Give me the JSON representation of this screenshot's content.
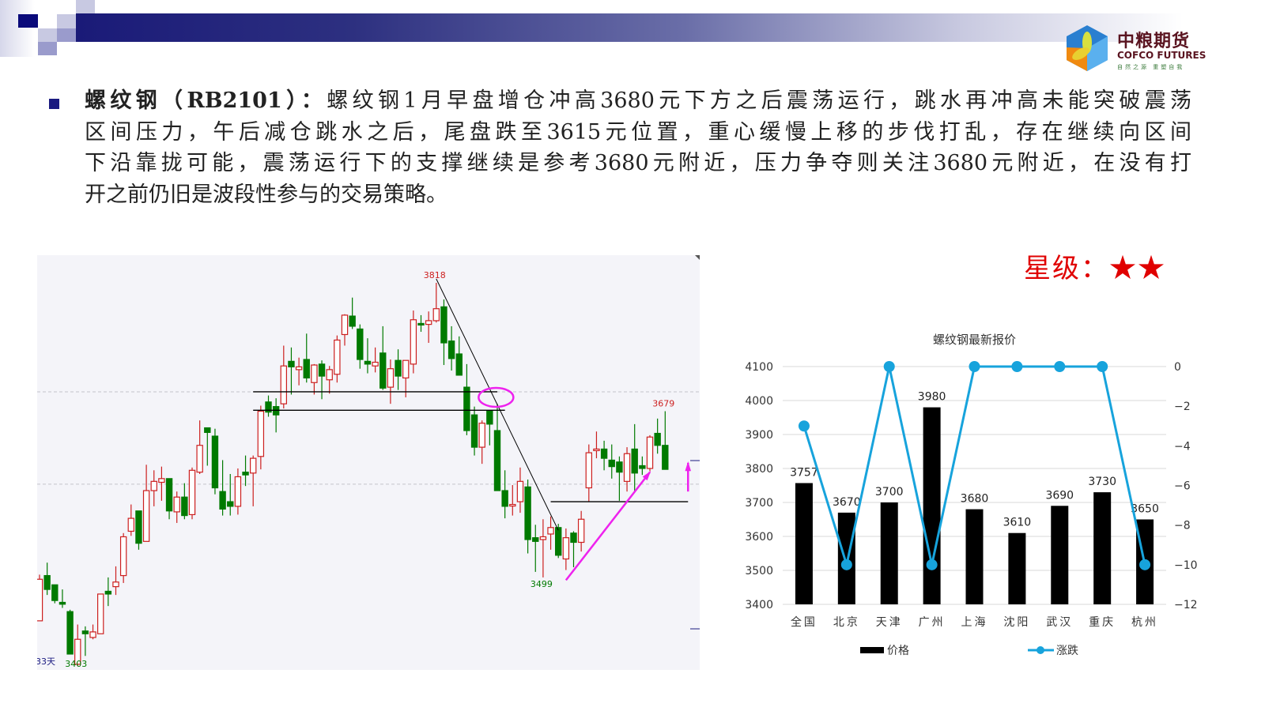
{
  "header": {
    "logo_cn": "中粮期货",
    "logo_en": "COFCO FUTURES",
    "logo_slogan": "自然之源 重塑自我"
  },
  "commentary": {
    "label": "螺纹钢（RB2101）：",
    "lines": [
      "螺纹钢1月早盘增仓冲高3680元下方之后震荡运行，跳水再冲高未能突破震荡",
      "区间压力，午后减仓跳水之后，尾盘跌至3615元位置，重心缓慢上移的步伐打乱，存在继续向区间",
      "下沿靠拢可能，震荡运行下的支撑继续是参考3680元附近，压力争夺则关注3680元附近，在没有打",
      "开之前仍旧是波段性参与的交易策略。"
    ]
  },
  "rating": {
    "label": "星级：",
    "stars": "★★",
    "value": 2,
    "max": 2
  },
  "colors": {
    "up": "#cc1f1f",
    "down": "#007a00",
    "annotation": "#ee22ee",
    "bar": "#000000",
    "line": "#17a3dc"
  },
  "chart_data": [
    {
      "type": "candlestick",
      "title": "",
      "corner_label": "33天",
      "ohlc_order": [
        "open",
        "high",
        "low",
        "close"
      ],
      "candles": [
        [
          3452,
          3502,
          3452,
          3497
        ],
        [
          3501,
          3515,
          3480,
          3486
        ],
        [
          3491,
          3491,
          3471,
          3474
        ],
        [
          3472,
          3486,
          3466,
          3470
        ],
        [
          3462,
          3464,
          3416,
          3416
        ],
        [
          3405,
          3448,
          3403,
          3432
        ],
        [
          3441,
          3446,
          3414,
          3438
        ],
        [
          3434,
          3448,
          3432,
          3440
        ],
        [
          3438,
          3481,
          3438,
          3481
        ],
        [
          3484,
          3499,
          3468,
          3481
        ],
        [
          3489,
          3511,
          3480,
          3494
        ],
        [
          3501,
          3547,
          3493,
          3543
        ],
        [
          3549,
          3578,
          3544,
          3563
        ],
        [
          3571,
          3571,
          3529,
          3536
        ],
        [
          3538,
          3621,
          3538,
          3593
        ],
        [
          3593,
          3615,
          3576,
          3603
        ],
        [
          3602,
          3619,
          3582,
          3606
        ],
        [
          3606,
          3606,
          3562,
          3571
        ],
        [
          3570,
          3592,
          3558,
          3586
        ],
        [
          3586,
          3601,
          3562,
          3566
        ],
        [
          3567,
          3618,
          3562,
          3615
        ],
        [
          3613,
          3669,
          3611,
          3642
        ],
        [
          3661,
          3661,
          3620,
          3656
        ],
        [
          3652,
          3660,
          3589,
          3596
        ],
        [
          3592,
          3626,
          3566,
          3573
        ],
        [
          3581,
          3611,
          3566,
          3576
        ],
        [
          3576,
          3617,
          3567,
          3608
        ],
        [
          3613,
          3631,
          3598,
          3610
        ],
        [
          3612,
          3631,
          3576,
          3628
        ],
        [
          3630,
          3685,
          3616,
          3679
        ],
        [
          3689,
          3696,
          3673,
          3678
        ],
        [
          3684,
          3693,
          3656,
          3675
        ],
        [
          3687,
          3750,
          3682,
          3728
        ],
        [
          3733,
          3748,
          3697,
          3727
        ],
        [
          3724,
          3737,
          3707,
          3727
        ],
        [
          3735,
          3763,
          3710,
          3715
        ],
        [
          3710,
          3730,
          3697,
          3729
        ],
        [
          3730,
          3734,
          3692,
          3717
        ],
        [
          3713,
          3728,
          3698,
          3724
        ],
        [
          3719,
          3761,
          3710,
          3756
        ],
        [
          3762,
          3784,
          3750,
          3783
        ],
        [
          3782,
          3802,
          3768,
          3771
        ],
        [
          3768,
          3773,
          3725,
          3735
        ],
        [
          3733,
          3758,
          3720,
          3730
        ],
        [
          3728,
          3748,
          3721,
          3732
        ],
        [
          3742,
          3771,
          3702,
          3704
        ],
        [
          3705,
          3735,
          3687,
          3725
        ],
        [
          3734,
          3746,
          3702,
          3717
        ],
        [
          3715,
          3734,
          3694,
          3734
        ],
        [
          3730,
          3788,
          3720,
          3778
        ],
        [
          3774,
          3783,
          3765,
          3773
        ],
        [
          3773,
          3787,
          3753,
          3777
        ],
        [
          3777,
          3818,
          3775,
          3790
        ],
        [
          3792,
          3800,
          3729,
          3753
        ],
        [
          3755,
          3771,
          3723,
          3736
        ],
        [
          3741,
          3760,
          3718,
          3718
        ],
        [
          3705,
          3730,
          3653,
          3658
        ],
        [
          3675,
          3684,
          3631,
          3640
        ],
        [
          3640,
          3669,
          3622,
          3666
        ],
        [
          3679,
          3680,
          3642,
          3665
        ],
        [
          3658,
          3687,
          3593,
          3593
        ],
        [
          3593,
          3615,
          3563,
          3576
        ],
        [
          3577,
          3599,
          3566,
          3578
        ],
        [
          3581,
          3618,
          3569,
          3603
        ],
        [
          3597,
          3605,
          3525,
          3540
        ],
        [
          3542,
          3556,
          3505,
          3538
        ],
        [
          3540,
          3562,
          3499,
          3543
        ],
        [
          3546,
          3565,
          3529,
          3553
        ],
        [
          3553,
          3557,
          3520,
          3523
        ],
        [
          3519,
          3552,
          3507,
          3542
        ],
        [
          3547,
          3549,
          3510,
          3537
        ],
        [
          3537,
          3571,
          3527,
          3562
        ],
        [
          3596,
          3643,
          3581,
          3634
        ],
        [
          3637,
          3657,
          3628,
          3638
        ],
        [
          3638,
          3647,
          3615,
          3628
        ],
        [
          3626,
          3643,
          3606,
          3619
        ],
        [
          3624,
          3630,
          3582,
          3613
        ],
        [
          3603,
          3640,
          3592,
          3633
        ],
        [
          3638,
          3665,
          3592,
          3612
        ],
        [
          3620,
          3630,
          3610,
          3617
        ],
        [
          3617,
          3653,
          3614,
          3651
        ],
        [
          3655,
          3671,
          3633,
          3642
        ],
        [
          3642,
          3679,
          3616,
          3616
        ]
      ],
      "gridlines": [
        3700,
        3600
      ],
      "extreme_labels": [
        {
          "text": "3818",
          "candle": 53,
          "at": "high",
          "color": "#cc1f1f"
        },
        {
          "text": "3499",
          "candle": 67,
          "at": "low",
          "color": "#007a00"
        },
        {
          "text": "3679",
          "candle": 83,
          "at": "high",
          "color": "#cc1f1f"
        },
        {
          "text": "3403",
          "candle": 6,
          "at": "low",
          "color": "#007a00"
        }
      ],
      "support_resistance": [
        {
          "price": 3700,
          "from_candle": 29,
          "to_candle": 61
        },
        {
          "price": 3680,
          "from_candle": 29,
          "to_candle": 62
        },
        {
          "price": 3581,
          "from_candle": 68,
          "to_candle": 86
        }
      ],
      "trendline": {
        "from": [
          53,
          3818
        ],
        "to": [
          69,
          3550
        ]
      },
      "highlight_ellipse": {
        "candle": 60,
        "price": 3694
      },
      "arrows": [
        {
          "from": [
            70,
            3496
          ],
          "to": [
            81,
            3613
          ]
        },
        {
          "from": [
            86,
            3592
          ],
          "to": [
            86,
            3623
          ]
        }
      ]
    },
    {
      "type": "bar+line",
      "title": "螺纹钢最新报价",
      "categories": [
        "全国",
        "北京",
        "天津",
        "广州",
        "上海",
        "沈阳",
        "武汉",
        "重庆",
        "杭州"
      ],
      "series": [
        {
          "name": "价格",
          "type": "bar",
          "axis": "left",
          "values": [
            3757,
            3670,
            3700,
            3980,
            3680,
            3610,
            3690,
            3730,
            3650
          ],
          "data_labels": true
        },
        {
          "name": "涨跌",
          "type": "line",
          "axis": "right",
          "values": [
            -3,
            -10,
            0,
            -10,
            0,
            0,
            0,
            0,
            -10
          ]
        }
      ],
      "left_axis": {
        "ylim": [
          3400,
          4100
        ],
        "ticks": [
          3400,
          3500,
          3600,
          3700,
          3800,
          3900,
          4000,
          4100
        ]
      },
      "right_axis": {
        "ylim": [
          -12,
          0
        ],
        "ticks": [
          0,
          -2,
          -4,
          -6,
          -8,
          -10,
          -12
        ]
      },
      "grid": true,
      "legend": "bottom"
    }
  ]
}
